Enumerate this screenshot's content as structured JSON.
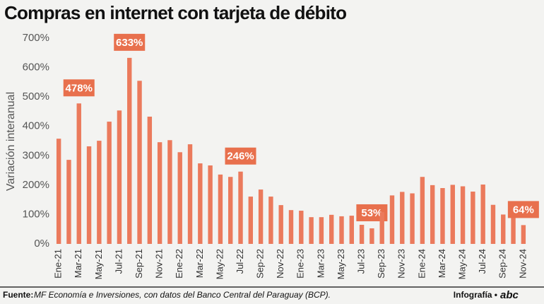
{
  "chart_data": {
    "type": "bar",
    "title": "Compras en internet con tarjeta de débito",
    "y_label": "Variación interanual",
    "categories": [
      "Ene-21",
      null,
      "Mar-21",
      null,
      "May-21",
      null,
      "Jul-21",
      null,
      "Sep-21",
      null,
      "Nov-21",
      null,
      "Ene-22",
      null,
      "Mar-22",
      null,
      "May-22",
      null,
      "Jul-22",
      null,
      "Sep-22",
      null,
      "Nov-22",
      null,
      "Ene-23",
      null,
      "Mar-23",
      null,
      "May-23",
      null,
      "Jul-23",
      null,
      "Sep-23",
      null,
      "Nov-23",
      null,
      "Ene-24",
      null,
      "Mar-24",
      null,
      "May-24",
      null,
      "Jul-24",
      null,
      "Sep-24",
      null,
      "Nov-24"
    ],
    "values": [
      358,
      286,
      478,
      332,
      351,
      416,
      454,
      633,
      555,
      433,
      346,
      353,
      312,
      339,
      274,
      267,
      236,
      228,
      246,
      161,
      185,
      161,
      132,
      115,
      113,
      91,
      91,
      99,
      94,
      96,
      65,
      53,
      108,
      165,
      177,
      172,
      228,
      200,
      190,
      201,
      196,
      178,
      202,
      133,
      100,
      90,
      64
    ],
    "value_labels": [
      null,
      null,
      "478%",
      null,
      null,
      null,
      null,
      "633%",
      null,
      null,
      null,
      null,
      null,
      null,
      null,
      null,
      null,
      null,
      "246%",
      null,
      null,
      null,
      null,
      null,
      null,
      null,
      null,
      null,
      null,
      null,
      null,
      "53%",
      null,
      null,
      null,
      null,
      null,
      null,
      null,
      null,
      null,
      null,
      null,
      null,
      null,
      null,
      "64%"
    ],
    "color": "#eb7a5c",
    "label_color": "#e8704d",
    "ylim": [
      0,
      700
    ],
    "yticks": [
      {
        "value": 0,
        "label": "0%"
      },
      {
        "value": 100,
        "label": "100%"
      },
      {
        "value": 200,
        "label": "200%"
      },
      {
        "value": 300,
        "label": "300%"
      },
      {
        "value": 400,
        "label": "400%"
      },
      {
        "value": 500,
        "label": "500%"
      },
      {
        "value": 600,
        "label": "600%"
      },
      {
        "value": 700,
        "label": "700%"
      }
    ],
    "source_label": "Fuente:",
    "source": "MF Economía e Inversiones, con datos del Banco Central del Paraguay (BCP).",
    "credit": "Infografía •",
    "credit_brand": "abc"
  }
}
